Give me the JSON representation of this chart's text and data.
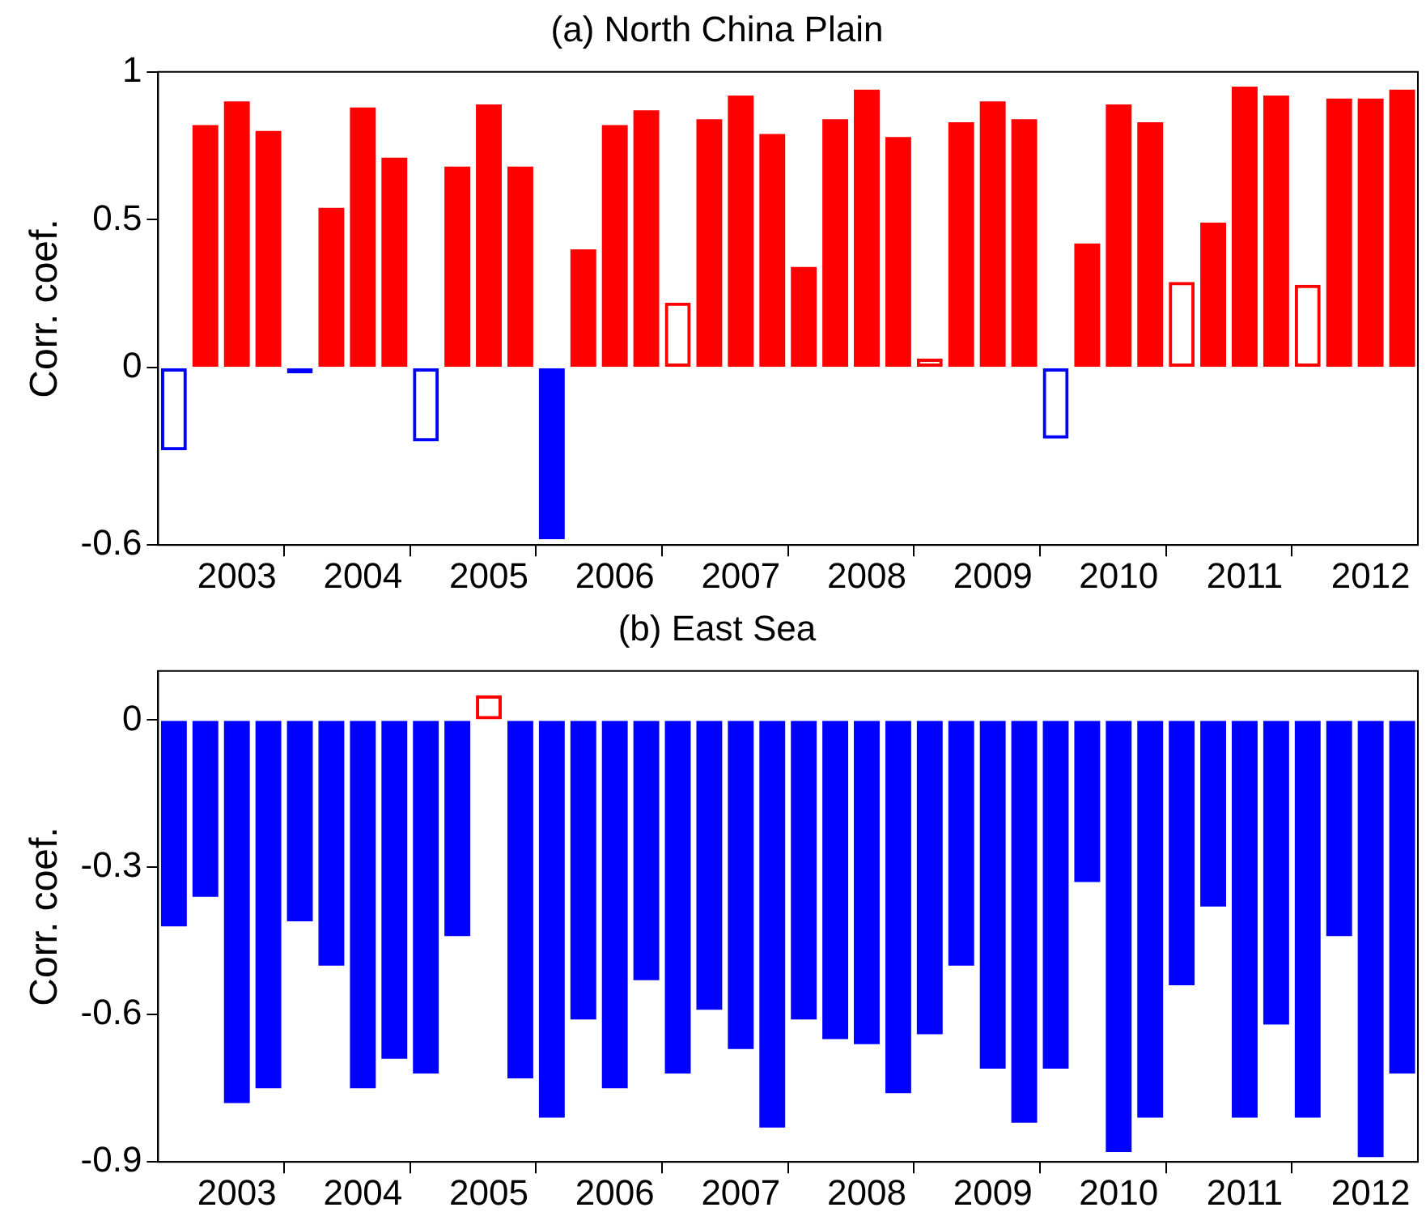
{
  "chart_data": [
    {
      "type": "bar",
      "title": "(a) North China Plain",
      "ylabel": "Corr. coef.",
      "stacked": true,
      "grid": false,
      "legend": false,
      "categories": [
        null,
        null,
        "2003",
        null,
        null,
        null,
        "2004",
        null,
        null,
        null,
        "2005",
        null,
        null,
        null,
        "2006",
        null,
        null,
        null,
        "2007",
        null,
        null,
        null,
        "2008",
        null,
        null,
        null,
        "2009",
        null,
        null,
        null,
        "2010",
        null,
        null,
        null,
        "2011",
        null,
        null,
        null,
        "2012",
        null
      ],
      "ylim": [
        -0.6,
        1
      ],
      "yticks": [
        -0.6,
        0,
        0.5,
        1
      ],
      "series": [
        {
          "values": [
            null,
            0.82,
            0.9,
            0.8,
            null,
            0.54,
            0.88,
            0.71,
            null,
            0.68,
            0.89,
            0.68,
            -0.58,
            0.4,
            0.82,
            0.87,
            null,
            0.84,
            0.92,
            0.79,
            0.34,
            0.84,
            0.94,
            0.78,
            null,
            0.83,
            0.9,
            0.84,
            null,
            0.42,
            0.89,
            0.83,
            null,
            0.49,
            0.95,
            0.92,
            null,
            0.91,
            0.91,
            0.94
          ],
          "colors": [
            "#0000ff",
            "#ff0000",
            "#ff0000",
            "#ff0000",
            "#0000ff",
            "#ff0000",
            "#ff0000",
            "#ff0000",
            "#0000ff",
            "#ff0000",
            "#ff0000",
            "#ff0000",
            "#0000ff",
            "#ff0000",
            "#ff0000",
            "#ff0000",
            "#ff0000",
            "#ff0000",
            "#ff0000",
            "#ff0000",
            "#ff0000",
            "#ff0000",
            "#ff0000",
            "#ff0000",
            "#ff0000",
            "#ff0000",
            "#ff0000",
            "#ff0000",
            "#0000ff",
            "#ff0000",
            "#ff0000",
            "#ff0000",
            "#ff0000",
            "#ff0000",
            "#ff0000",
            "#ff0000",
            "#ff0000",
            "#ff0000",
            "#ff0000",
            "#ff0000"
          ]
        },
        {
          "values": [
            -0.28,
            null,
            null,
            null,
            -0.02,
            null,
            null,
            null,
            -0.25,
            null,
            null,
            null,
            null,
            null,
            null,
            null,
            0.22,
            null,
            null,
            null,
            null,
            null,
            null,
            null,
            0.03,
            null,
            null,
            null,
            -0.24,
            null,
            null,
            null,
            0.29,
            null,
            null,
            null,
            0.28,
            null,
            null,
            null
          ],
          "colors": [
            "#0000ff",
            "#ff0000",
            "#ff0000",
            "#ff0000",
            "#0000ff",
            "#ff0000",
            "#ff0000",
            "#ff0000",
            "#0000ff",
            "#ff0000",
            "#ff0000",
            "#ff0000",
            "#0000ff",
            "#ff0000",
            "#ff0000",
            "#ff0000",
            "#ff0000",
            "#ff0000",
            "#ff0000",
            "#ff0000",
            "#ff0000",
            "#ff0000",
            "#ff0000",
            "#ff0000",
            "#ff0000",
            "#ff0000",
            "#ff0000",
            "#ff0000",
            "#0000ff",
            "#ff0000",
            "#ff0000",
            "#ff0000",
            "#ff0000",
            "#ff0000",
            "#ff0000",
            "#ff0000",
            "#ff0000",
            "#ff0000",
            "#ff0000",
            "#ff0000"
          ]
        }
      ]
    },
    {
      "type": "bar",
      "title": "(b) East Sea",
      "ylabel": "Corr. coef.",
      "stacked": true,
      "grid": false,
      "legend": false,
      "categories": [
        null,
        null,
        "2003",
        null,
        null,
        null,
        "2004",
        null,
        null,
        null,
        "2005",
        null,
        null,
        null,
        "2006",
        null,
        null,
        null,
        "2007",
        null,
        null,
        null,
        "2008",
        null,
        null,
        null,
        "2009",
        null,
        null,
        null,
        "2010",
        null,
        null,
        null,
        "2011",
        null,
        null,
        null,
        "2012",
        null
      ],
      "ylim": [
        -0.9,
        0.1
      ],
      "yticks": [
        -0.9,
        -0.6,
        -0.3,
        0
      ],
      "series": [
        {
          "values": [
            -0.42,
            -0.36,
            -0.78,
            -0.75,
            -0.41,
            -0.5,
            -0.75,
            -0.69,
            -0.72,
            -0.44,
            null,
            -0.73,
            -0.81,
            -0.61,
            -0.75,
            -0.53,
            -0.72,
            -0.59,
            -0.67,
            -0.83,
            -0.61,
            -0.65,
            -0.66,
            -0.76,
            -0.64,
            -0.5,
            -0.71,
            -0.82,
            -0.71,
            -0.33,
            -0.88,
            -0.81,
            -0.54,
            -0.38,
            -0.81,
            -0.62,
            -0.81,
            -0.44,
            -0.89,
            -0.72
          ],
          "color": "#0000ff"
        },
        {
          "values": [
            null,
            null,
            null,
            null,
            null,
            null,
            null,
            null,
            null,
            null,
            0.05,
            null,
            null,
            null,
            null,
            null,
            null,
            null,
            null,
            null,
            null,
            null,
            null,
            null,
            null,
            null,
            null,
            null,
            null,
            null,
            null,
            null,
            null,
            null,
            null,
            null,
            null,
            null,
            null,
            null
          ],
          "color": "#ff0000"
        }
      ]
    }
  ]
}
